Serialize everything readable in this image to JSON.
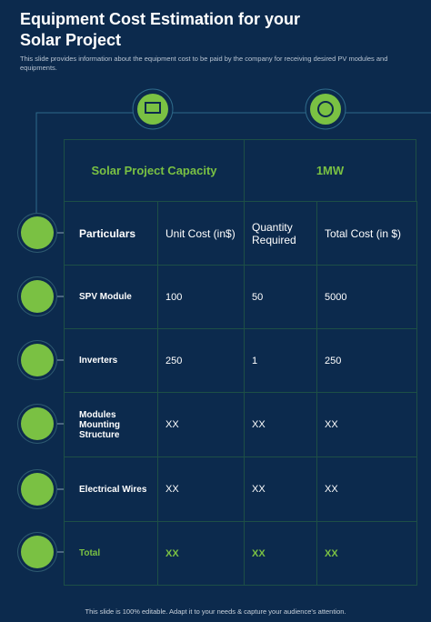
{
  "header": {
    "title": "Equipment Cost Estimation for your Solar Project",
    "subtitle": "This slide provides information about the equipment cost to be paid by the company for receiving desired PV modules and equipments."
  },
  "table": {
    "capacity_label": "Solar Project Capacity",
    "capacity_value": "1MW",
    "columns": [
      "Particulars",
      "Unit Cost (in$)",
      "Quantity Required",
      "Total Cost (in $)"
    ],
    "rows": [
      [
        "SPV Module",
        "100",
        "50",
        "5000"
      ],
      [
        "Inverters",
        "250",
        "1",
        "250"
      ],
      [
        "Modules Mounting Structure",
        "XX",
        "XX",
        "XX"
      ],
      [
        "Electrical Wires",
        "XX",
        "XX",
        "XX"
      ],
      [
        "Total",
        "XX",
        "XX",
        "XX"
      ]
    ]
  },
  "footer": "This slide is 100% editable. Adapt it to your needs & capture your audience's attention."
}
